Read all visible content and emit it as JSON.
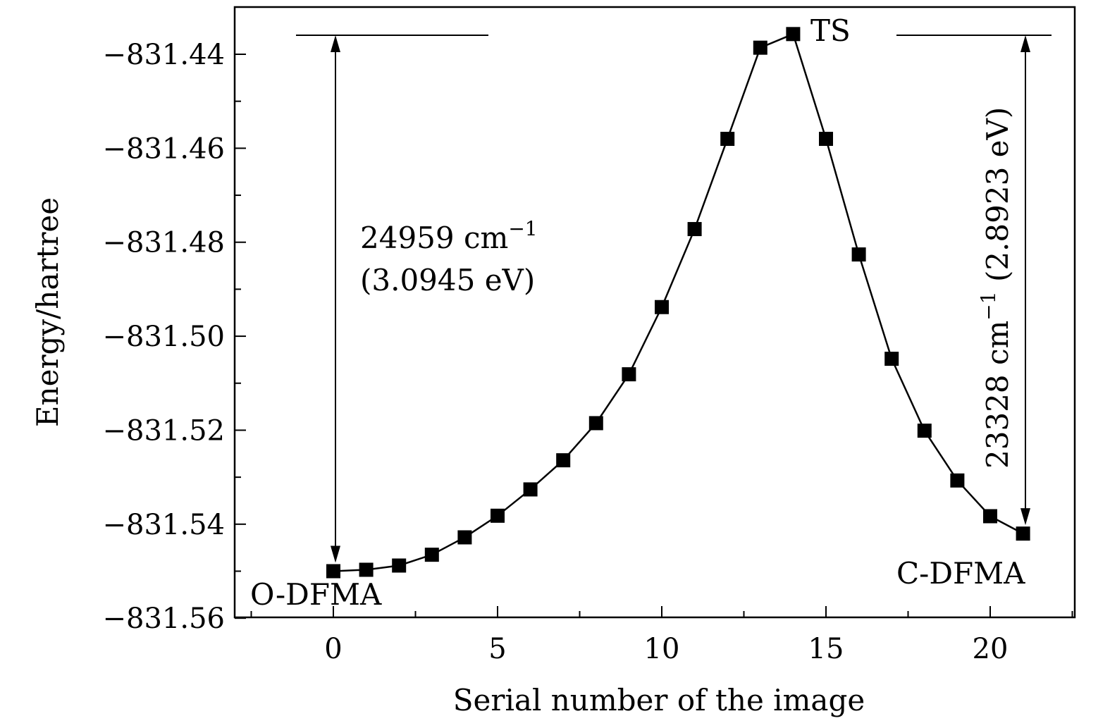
{
  "chart_data": {
    "type": "line",
    "xlabel": "Serial number of the image",
    "ylabel": "Energy/hartree",
    "xlim": [
      -3,
      22.5
    ],
    "ylim": [
      -831.56,
      -831.43
    ],
    "x_ticks": [
      0,
      5,
      10,
      15,
      20
    ],
    "x_tick_labels": [
      "0",
      "5",
      "10",
      "15",
      "20"
    ],
    "y_ticks": [
      -831.44,
      -831.46,
      -831.48,
      -831.5,
      -831.52,
      -831.54,
      -831.56
    ],
    "y_tick_labels": [
      "−831.44",
      "−831.46",
      "−831.48",
      "−831.50",
      "−831.52",
      "−831.54",
      "−831.56"
    ],
    "grid": false,
    "marker": "square",
    "line_color": "#000000",
    "series": [
      {
        "x": [
          0,
          1,
          2,
          3,
          4,
          5,
          6,
          7,
          8,
          9,
          10,
          11,
          12,
          13,
          14,
          15,
          16,
          17,
          18,
          19,
          20,
          21
        ],
        "y": [
          -831.55,
          -831.5497,
          -831.5488,
          -831.5465,
          -831.5428,
          -831.5382,
          -831.5326,
          -831.5264,
          -831.5185,
          -831.5081,
          -831.4938,
          -831.4772,
          -831.458,
          -831.4386,
          -831.4357,
          -831.458,
          -831.4826,
          -831.5048,
          -831.5201,
          -831.5307,
          -831.5383,
          -831.542
        ]
      }
    ],
    "annotations": {
      "ts_label": "TS",
      "o_label": "O-DFMA",
      "c_label": "C-DFMA",
      "left_barrier_line1_main": "24959 cm",
      "left_barrier_line1_sup": "−1",
      "left_barrier_line2": "(3.0945 eV)",
      "right_barrier_main": "23328 cm",
      "right_barrier_sup": "−1",
      "right_barrier_tail": " (2.8923 eV)"
    }
  }
}
